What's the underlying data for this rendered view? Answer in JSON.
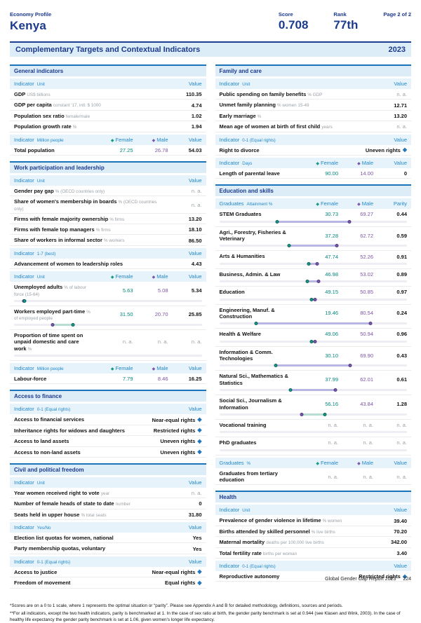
{
  "header": {
    "eyebrow": "Economy Profile",
    "country": "Kenya",
    "score_label": "Score",
    "score_value": "0.708",
    "rank_label": "Rank",
    "rank_value": "77th",
    "page_label": "Page 2 of 2"
  },
  "banner": {
    "title": "Complementary Targets and Contextual Indicators",
    "year": "2023"
  },
  "legend": {
    "female": "Female",
    "male": "Male"
  },
  "colors": {
    "navy": "#1c3a8e",
    "header_blue": "#2288c8",
    "section_border": "#1a74ba",
    "light_blue_bg": "#dcedf8",
    "subhead_bg": "#e7f3fb",
    "female_teal": "#00857c",
    "male_purple": "#7c52a3",
    "band_female_higher": "#b9dfd4",
    "band_male_higher": "#b8b6e2",
    "track_gray": "#ededf3",
    "rights_icon_blue": "#1a6fb5"
  },
  "columns": {
    "left": [
      {
        "title": "General indicators",
        "blocks": [
          {
            "kind": "head",
            "label": "Indicator",
            "sub": "Unit",
            "last": "Value",
            "fm": false
          },
          {
            "kind": "row",
            "label": "GDP",
            "sub": "US$ billions",
            "value": "110.35"
          },
          {
            "kind": "row",
            "label": "GDP per capita",
            "sub": "constant '17, intl. $ 1000",
            "value": "4.74"
          },
          {
            "kind": "row",
            "label": "Population sex ratio",
            "sub": "female/male",
            "value": "1.02"
          },
          {
            "kind": "row",
            "label": "Population growth rate",
            "sub": "%",
            "value": "1.94"
          },
          {
            "kind": "head",
            "label": "Indicator",
            "sub": "Million people",
            "last": "Value",
            "fm": true
          },
          {
            "kind": "row",
            "label": "Total population",
            "female": "27.25",
            "male": "26.78",
            "value": "54.03"
          }
        ]
      },
      {
        "title": "Work participation and leadership",
        "blocks": [
          {
            "kind": "head",
            "label": "Indicator",
            "sub": "Unit",
            "last": "Value",
            "fm": false
          },
          {
            "kind": "row",
            "label": "Gender pay gap",
            "sub": "% (OECD countries only)",
            "value": "n. a."
          },
          {
            "kind": "row",
            "label": "Share of women's membership in boards",
            "sub": "% (OECD countries only)",
            "value": "n. a."
          },
          {
            "kind": "row",
            "label": "Firms with female majority ownership",
            "sub": "% firms",
            "value": "13.20"
          },
          {
            "kind": "row",
            "label": "Firms with female top managers",
            "sub": "% firms",
            "value": "18.10"
          },
          {
            "kind": "row",
            "label": "Share of workers in informal sector",
            "sub": "% workers",
            "value": "86.50"
          },
          {
            "kind": "head",
            "label": "Indicator",
            "sub": "1-7 (best)",
            "last": "Value",
            "fm": false
          },
          {
            "kind": "row",
            "label": "Advancement of women to leadership roles",
            "sub": "",
            "value": "4.43"
          },
          {
            "kind": "head",
            "label": "Indicator",
            "sub": "Unit",
            "last": "Value",
            "fm": true
          },
          {
            "kind": "row",
            "label": "Unemployed adults",
            "sub": "% of labour force (15-64)",
            "female": "5.63",
            "male": "5.08",
            "value": "5.34",
            "chart": {
              "f": 5.63,
              "m": 5.08
            }
          },
          {
            "kind": "row",
            "label": "Workers employed part-time",
            "sub": "% of employed people",
            "female": "31.50",
            "male": "20.70",
            "value": "25.85",
            "chart": {
              "f": 31.5,
              "m": 20.7
            }
          },
          {
            "kind": "row",
            "label": "Proportion of time spent on unpaid domestic and care work",
            "sub": "%",
            "female": "n. a.",
            "male": "n. a.",
            "value": "n. a.",
            "chart": {
              "f": null,
              "m": null
            }
          },
          {
            "kind": "head",
            "label": "Indicator",
            "sub": "Million people",
            "last": "Value",
            "fm": true
          },
          {
            "kind": "row",
            "label": "Labour-force",
            "female": "7.79",
            "male": "8.46",
            "value": "16.25"
          }
        ]
      },
      {
        "title": "Access to finance",
        "blocks": [
          {
            "kind": "head",
            "label": "Indicator",
            "sub": "0-1 (Equal rights)",
            "last": "Value",
            "fm": false
          },
          {
            "kind": "rights",
            "label": "Access to financial services",
            "value": "Near-equal rights"
          },
          {
            "kind": "rights",
            "label": "Inheritance rights for widows and daughters",
            "value": "Restricted rights"
          },
          {
            "kind": "rights",
            "label": "Access to land assets",
            "value": "Uneven rights"
          },
          {
            "kind": "rights",
            "label": "Access to non-land assets",
            "value": "Uneven rights"
          }
        ]
      },
      {
        "title": "Civil and political freedom",
        "blocks": [
          {
            "kind": "head",
            "label": "Indicator",
            "sub": "Unit",
            "last": "Value",
            "fm": false
          },
          {
            "kind": "row",
            "label": "Year women received right to vote",
            "sub": "year",
            "value": "n. a."
          },
          {
            "kind": "row",
            "label": "Number of female heads of state to date",
            "sub": "number",
            "value": "0"
          },
          {
            "kind": "row",
            "label": "Seats held in upper house",
            "sub": "% total seats",
            "value": "31.80"
          },
          {
            "kind": "head",
            "label": "Indicator",
            "sub": "Yes/No",
            "last": "Value",
            "fm": false
          },
          {
            "kind": "row",
            "label": "Election list quotas for women, national",
            "sub": "",
            "value": "Yes"
          },
          {
            "kind": "row",
            "label": "Party membership quotas, voluntary",
            "sub": "",
            "value": "Yes"
          },
          {
            "kind": "head",
            "label": "Indicator",
            "sub": "0-1 (Equal rights)",
            "last": "Value",
            "fm": false
          },
          {
            "kind": "rights",
            "label": "Access to justice",
            "value": "Near-equal rights"
          },
          {
            "kind": "rights",
            "label": "Freedom of movement",
            "value": "Equal rights"
          }
        ]
      }
    ],
    "right": [
      {
        "title": "Family and care",
        "blocks": [
          {
            "kind": "head",
            "label": "Indicator",
            "sub": "Unit",
            "last": "Value",
            "fm": false
          },
          {
            "kind": "row",
            "label": "Public spending on family benefits",
            "sub": "% GDP",
            "value": "n. a."
          },
          {
            "kind": "row",
            "label": "Unmet family planning",
            "sub": "% women 15-49",
            "value": "12.71"
          },
          {
            "kind": "row",
            "label": "Early marriage",
            "sub": "%",
            "value": "13.20"
          },
          {
            "kind": "row",
            "label": "Mean age of women at birth of first child",
            "sub": "years",
            "value": "n. a."
          },
          {
            "kind": "head",
            "label": "Indicator",
            "sub": "0-1 (Equal rights)",
            "last": "Value",
            "fm": false
          },
          {
            "kind": "rights",
            "label": "Right to divorce",
            "value": "Uneven rights"
          },
          {
            "kind": "head",
            "label": "Indicator",
            "sub": "Days",
            "last": "Value",
            "fm": true
          },
          {
            "kind": "row",
            "label": "Length of parental leave",
            "female": "90.00",
            "male": "14.00",
            "value": "0"
          }
        ]
      },
      {
        "title": "Education and skills",
        "blocks": [
          {
            "kind": "head",
            "label": "Graduates",
            "sub": "Attainment %",
            "last": "Parity",
            "fm": true
          },
          {
            "kind": "row",
            "label": "STEM Graduates",
            "female": "30.73",
            "male": "69.27",
            "value": "0.44",
            "chart": {
              "f": 30.73,
              "m": 69.27
            }
          },
          {
            "kind": "row",
            "label": "Agri., Forestry, Fisheries & Veterinary",
            "female": "37.28",
            "male": "62.72",
            "value": "0.59",
            "chart": {
              "f": 37.28,
              "m": 62.72
            }
          },
          {
            "kind": "row",
            "label": "Arts & Humanities",
            "female": "47.74",
            "male": "52.26",
            "value": "0.91",
            "chart": {
              "f": 47.74,
              "m": 52.26
            }
          },
          {
            "kind": "row",
            "label": "Business, Admin. & Law",
            "female": "46.98",
            "male": "53.02",
            "value": "0.89",
            "chart": {
              "f": 46.98,
              "m": 53.02
            }
          },
          {
            "kind": "row",
            "label": "Education",
            "female": "49.15",
            "male": "50.85",
            "value": "0.97",
            "chart": {
              "f": 49.15,
              "m": 50.85
            }
          },
          {
            "kind": "row",
            "label": "Engineering, Manuf. & Construction",
            "female": "19.46",
            "male": "80.54",
            "value": "0.24",
            "chart": {
              "f": 19.46,
              "m": 80.54
            }
          },
          {
            "kind": "row",
            "label": "Health & Welfare",
            "female": "49.06",
            "male": "50.94",
            "value": "0.96",
            "chart": {
              "f": 49.06,
              "m": 50.94
            }
          },
          {
            "kind": "row",
            "label": "Information & Comm. Technologies",
            "female": "30.10",
            "male": "69.90",
            "value": "0.43",
            "chart": {
              "f": 30.1,
              "m": 69.9
            }
          },
          {
            "kind": "row",
            "label": "Natural Sci., Mathematics & Statistics",
            "female": "37.99",
            "male": "62.01",
            "value": "0.61",
            "chart": {
              "f": 37.99,
              "m": 62.01
            }
          },
          {
            "kind": "row",
            "label": "Social Sci., Journalism & Information",
            "female": "56.16",
            "male": "43.84",
            "value": "1.28",
            "chart": {
              "f": 56.16,
              "m": 43.84
            }
          },
          {
            "kind": "row",
            "label": "Vocational training",
            "female": "n. a.",
            "male": "n. a.",
            "value": "n. a.",
            "chart": {
              "f": null,
              "m": null
            }
          },
          {
            "kind": "row",
            "label": "PhD graduates",
            "female": "n. a.",
            "male": "n. a.",
            "value": "n. a.",
            "chart": {
              "f": null,
              "m": null
            }
          },
          {
            "kind": "head",
            "label": "Graduates",
            "sub": "%",
            "last": "Value",
            "fm": true
          },
          {
            "kind": "row",
            "label": "Graduates from tertiary education",
            "female": "n. a.",
            "male": "n. a.",
            "value": "n. a."
          }
        ]
      },
      {
        "title": "Health",
        "blocks": [
          {
            "kind": "head",
            "label": "Indicator",
            "sub": "Unit",
            "last": "Value",
            "fm": false
          },
          {
            "kind": "row",
            "label": "Prevalence of gender violence in lifetime",
            "sub": "% women",
            "value": "39.40"
          },
          {
            "kind": "row",
            "label": "Births attended by skilled personnel",
            "sub": "% live births",
            "value": "70.20"
          },
          {
            "kind": "row",
            "label": "Maternal mortality",
            "sub": "deaths per 100,000 live births",
            "value": "342.00"
          },
          {
            "kind": "row",
            "label": "Total fertility rate",
            "sub": "births per woman",
            "value": "3.40"
          },
          {
            "kind": "head",
            "label": "Indicator",
            "sub": "0-1 (Equal rights)",
            "last": "Value",
            "fm": false
          },
          {
            "kind": "rights",
            "label": "Reproductive autonomy",
            "value": "Restricted rights"
          }
        ]
      }
    ]
  },
  "footnotes": [
    "*Scores are on a 0 to 1 scale, where 1 represents the optimal situation or “parity”. Please see Appendix A and B for detailed methodology, definitions, sources and periods.",
    "**For all indicators, except the two health indicators, parity is benchmarked at 1. In the case of sex ratio at birth, the gender parity benchmark is set at 0.944 (see Klasen and Wink, 2003). In the case of healthy life expectancy the gender parity benchmark is set at 1.06, given women's longer life expectancy."
  ],
  "footer": {
    "report": "Global Gender Gap Report 2023",
    "page": "224"
  }
}
